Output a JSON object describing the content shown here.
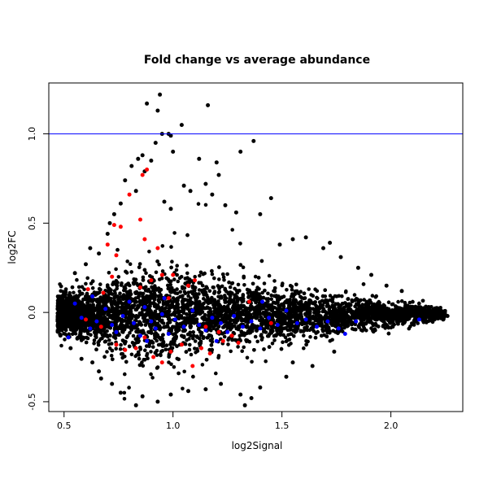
{
  "chart_data": {
    "type": "scatter",
    "title": "Fold change vs average abundance",
    "xlabel": "log2Signal",
    "ylabel": "log2FC",
    "xlim": [
      0.43,
      2.33
    ],
    "ylim": [
      -0.555,
      1.285
    ],
    "x_ticks": [
      0.5,
      1.0,
      1.5,
      2.0
    ],
    "x_tick_labels": [
      "0.5",
      "1.0",
      "1.5",
      "2.0"
    ],
    "y_ticks": [
      -0.5,
      0.0,
      0.5,
      1.0
    ],
    "y_tick_labels": [
      "-0.5",
      "0.0",
      "0.5",
      "1.0"
    ],
    "grid": false,
    "legend": "none",
    "reference_lines": [
      {
        "orientation": "horizontal",
        "y": 1.0,
        "color": "#0000ff"
      }
    ],
    "series": [
      {
        "color": "#000000",
        "points": [
          [
            0.88,
            1.17
          ],
          [
            0.94,
            1.22
          ],
          [
            0.93,
            1.13
          ],
          [
            1.16,
            1.16
          ],
          [
            1.04,
            1.05
          ],
          [
            0.98,
            1.0
          ],
          [
            0.99,
            0.99
          ],
          [
            0.95,
            1.0
          ],
          [
            1.31,
            0.9
          ],
          [
            1.37,
            0.96
          ],
          [
            0.92,
            0.95
          ],
          [
            0.86,
            0.88
          ],
          [
            0.84,
            0.86
          ],
          [
            1.0,
            0.9
          ],
          [
            0.9,
            0.85
          ],
          [
            1.12,
            0.86
          ],
          [
            1.2,
            0.84
          ],
          [
            0.81,
            0.82
          ],
          [
            0.87,
            0.79
          ],
          [
            0.78,
            0.74
          ],
          [
            0.83,
            0.68
          ],
          [
            0.76,
            0.61
          ],
          [
            0.73,
            0.55
          ],
          [
            0.71,
            0.5
          ],
          [
            1.21,
            0.77
          ],
          [
            1.15,
            0.72
          ],
          [
            1.24,
            0.6
          ],
          [
            1.29,
            0.56
          ],
          [
            1.45,
            0.64
          ],
          [
            1.4,
            0.55
          ],
          [
            0.96,
            0.62
          ],
          [
            1.05,
            0.71
          ],
          [
            1.08,
            0.68
          ],
          [
            0.99,
            0.58
          ],
          [
            1.18,
            0.66
          ],
          [
            1.61,
            0.42
          ],
          [
            1.69,
            0.36
          ],
          [
            1.77,
            0.31
          ],
          [
            1.72,
            0.39
          ],
          [
            1.55,
            0.41
          ],
          [
            1.49,
            0.38
          ],
          [
            1.85,
            0.25
          ],
          [
            1.91,
            0.21
          ],
          [
            1.98,
            0.15
          ],
          [
            2.05,
            0.12
          ],
          [
            0.76,
            -0.45
          ],
          [
            0.83,
            -0.52
          ],
          [
            0.86,
            -0.47
          ],
          [
            0.93,
            -0.5
          ],
          [
            0.99,
            -0.46
          ],
          [
            1.07,
            -0.44
          ],
          [
            1.15,
            -0.43
          ],
          [
            1.33,
            -0.52
          ],
          [
            1.36,
            -0.48
          ],
          [
            1.31,
            -0.46
          ],
          [
            0.67,
            -0.37
          ],
          [
            0.72,
            -0.4
          ],
          [
            1.22,
            -0.4
          ],
          [
            1.4,
            -0.42
          ],
          [
            1.52,
            -0.36
          ],
          [
            1.64,
            -0.3
          ],
          [
            1.74,
            -0.22
          ],
          [
            2.26,
            -0.02
          ],
          [
            2.24,
            -0.04
          ],
          [
            2.21,
            -0.01
          ],
          [
            0.55,
            0.22
          ],
          [
            0.6,
            0.27
          ],
          [
            0.66,
            0.33
          ],
          [
            0.62,
            0.36
          ],
          [
            0.7,
            0.44
          ],
          [
            0.53,
            -0.2
          ],
          [
            0.58,
            -0.26
          ],
          [
            0.63,
            -0.28
          ],
          [
            0.66,
            -0.33
          ],
          [
            1.55,
            -0.28
          ]
        ]
      },
      {
        "color": "#0000ff",
        "points": [
          [
            0.52,
            -0.14
          ],
          [
            0.55,
            0.05
          ],
          [
            0.58,
            -0.03
          ],
          [
            0.62,
            -0.09
          ],
          [
            0.65,
            -0.05
          ],
          [
            0.69,
            0.02
          ],
          [
            0.72,
            -0.07
          ],
          [
            0.74,
            -0.11
          ],
          [
            0.77,
            -0.02
          ],
          [
            0.8,
            0.06
          ],
          [
            0.82,
            -0.06
          ],
          [
            0.85,
            -0.13
          ],
          [
            0.87,
            0.03
          ],
          [
            0.9,
            -0.05
          ],
          [
            0.92,
            -0.09
          ],
          [
            0.95,
            -0.01
          ],
          [
            0.98,
            -0.12
          ],
          [
            1.01,
            -0.04
          ],
          [
            1.05,
            -0.08
          ],
          [
            1.09,
            0.01
          ],
          [
            1.12,
            -0.07
          ],
          [
            1.15,
            -0.1
          ],
          [
            1.18,
            -0.03
          ],
          [
            1.22,
            -0.06
          ],
          [
            1.25,
            -0.11
          ],
          [
            1.28,
            -0.02
          ],
          [
            1.32,
            -0.08
          ],
          [
            1.36,
            -0.05
          ],
          [
            1.4,
            -0.09
          ],
          [
            1.44,
            -0.03
          ],
          [
            1.48,
            -0.07
          ],
          [
            1.52,
            0.01
          ],
          [
            1.57,
            -0.06
          ],
          [
            1.61,
            -0.04
          ],
          [
            1.66,
            -0.08
          ],
          [
            1.71,
            -0.05
          ],
          [
            1.76,
            -0.09
          ],
          [
            1.79,
            -0.12
          ],
          [
            1.84,
            -0.05
          ],
          [
            2.13,
            -0.04
          ],
          [
            0.63,
            0.09
          ],
          [
            0.96,
            0.08
          ],
          [
            1.41,
            0.06
          ],
          [
            1.2,
            -0.16
          ],
          [
            0.88,
            -0.16
          ]
        ]
      },
      {
        "color": "#ff0000",
        "points": [
          [
            0.86,
            0.77
          ],
          [
            0.88,
            0.8
          ],
          [
            0.85,
            0.52
          ],
          [
            0.8,
            0.66
          ],
          [
            0.76,
            0.48
          ],
          [
            0.73,
            0.49
          ],
          [
            0.87,
            0.41
          ],
          [
            0.7,
            0.38
          ],
          [
            0.74,
            0.32
          ],
          [
            0.93,
            0.36
          ],
          [
            1.0,
            0.21
          ],
          [
            0.72,
            0.2
          ],
          [
            0.95,
            0.21
          ],
          [
            0.85,
            0.14
          ],
          [
            1.1,
            0.18
          ],
          [
            1.07,
            0.15
          ],
          [
            0.9,
            0.18
          ],
          [
            0.98,
            0.08
          ],
          [
            0.68,
            0.11
          ],
          [
            0.61,
            0.13
          ],
          [
            0.6,
            -0.04
          ],
          [
            0.67,
            -0.08
          ],
          [
            0.74,
            -0.18
          ],
          [
            0.78,
            -0.21
          ],
          [
            0.83,
            -0.2
          ],
          [
            0.91,
            -0.25
          ],
          [
            0.95,
            -0.28
          ],
          [
            0.99,
            -0.22
          ],
          [
            1.04,
            -0.18
          ],
          [
            1.13,
            -0.2
          ],
          [
            1.17,
            -0.23
          ],
          [
            1.23,
            -0.16
          ],
          [
            1.27,
            -0.13
          ],
          [
            1.21,
            -0.11
          ],
          [
            0.87,
            -0.14
          ],
          [
            1.09,
            -0.3
          ],
          [
            1.15,
            -0.08
          ],
          [
            1.3,
            -0.17
          ],
          [
            1.35,
            0.06
          ],
          [
            1.45,
            -0.06
          ]
        ]
      }
    ]
  }
}
